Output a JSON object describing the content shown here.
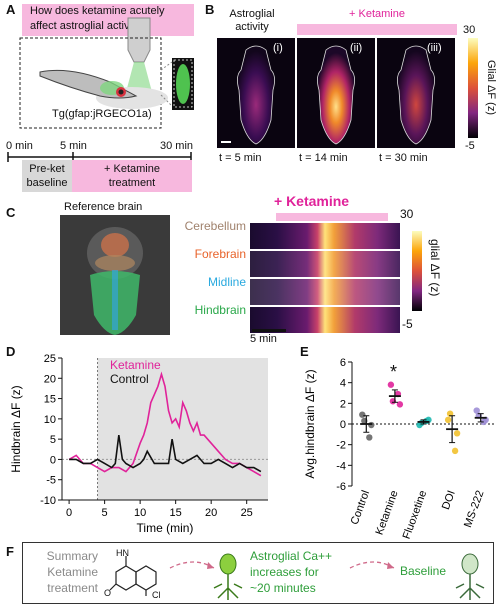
{
  "colors": {
    "ketamine": "#e0239a",
    "ketamine_bar": "#f7b8de",
    "baseline_gray": "#d8d8d8",
    "cerebellum": "#a0826d",
    "forebrain": "#e8632a",
    "midline": "#29a9df",
    "hindbrain": "#2aa84a",
    "summary_green": "#2e9e3a"
  },
  "panelA": {
    "letter": "A",
    "question": "How does ketamine acutely affect astroglial activity?",
    "question_line1": "How does ketamine acutely",
    "question_line2": "affect astroglial activity?",
    "transgene": "Tg(gfap:jRGECO1a)",
    "time_labels": [
      "0 min",
      "5 min",
      "30 min"
    ],
    "phase1_line1": "Pre-ket",
    "phase1_line2": "baseline",
    "phase2_line1": "+ Ketamine",
    "phase2_line2": "treatment"
  },
  "panelB": {
    "letter": "B",
    "left_title_line1": "Astroglial",
    "left_title_line2": "activity",
    "ketamine_label": "+ Ketamine",
    "brains": [
      {
        "numeral": "(i)",
        "time": "t = 5 min",
        "level": 0.35
      },
      {
        "numeral": "(ii)",
        "time": "t = 14 min",
        "level": 1.0
      },
      {
        "numeral": "(iii)",
        "time": "t = 30 min",
        "level": 0.4
      }
    ],
    "colorbar_max": "30",
    "colorbar_min": "-5",
    "colorbar_label": "Glial ΔF (z)"
  },
  "panelC": {
    "letter": "C",
    "ref_title": "Reference brain",
    "ketamine_label": "+ Ketamine",
    "regions": [
      "Cerebellum",
      "Forebrain",
      "Midline",
      "Hindbrain"
    ],
    "colorbar_max": "30",
    "colorbar_min": "-5",
    "colorbar_label": "glial ΔF (z)",
    "scale_label": "5 min"
  },
  "panelD": {
    "letter": "D",
    "legend_ketamine": "Ketamine",
    "legend_control": "Control"
  },
  "panelE": {
    "letter": "E",
    "star": "*"
  },
  "panelF": {
    "letter": "F",
    "summary_line1": "Summary",
    "summary_line2": "Ketamine",
    "summary_line3": "treatment",
    "effect_line1": "Astroglial Ca++",
    "effect_line2": "increases for",
    "effect_line3": "~20 minutes",
    "end_label": "Baseline",
    "molecule_labels": [
      "HN",
      "O",
      "Cl"
    ]
  },
  "chart_data": [
    {
      "type": "line",
      "panel": "D",
      "xlabel": "Time (min)",
      "ylabel": "Hindbrain ΔF (z)",
      "xlim": [
        -1,
        28
      ],
      "ylim": [
        -10,
        25
      ],
      "xticks": [
        0,
        5,
        10,
        15,
        20,
        25
      ],
      "yticks": [
        -10,
        -5,
        0,
        5,
        10,
        15,
        20,
        25
      ],
      "shaded_from": 4,
      "series": [
        {
          "name": "Ketamine",
          "color": "#e0239a",
          "x": [
            0,
            1,
            2,
            3,
            4,
            5,
            6,
            7,
            8,
            9,
            10,
            10.5,
            11,
            11.5,
            12,
            12.5,
            13,
            13.5,
            14,
            14.5,
            15,
            15.5,
            16,
            16.5,
            17,
            17.5,
            18,
            18.5,
            19,
            20,
            21,
            22,
            23,
            24,
            25,
            26,
            27
          ],
          "y": [
            0,
            1,
            -1,
            -1,
            -2,
            -3,
            -2,
            -2,
            -3,
            -1,
            4,
            6,
            9,
            14,
            16,
            18,
            21,
            18,
            12,
            9,
            10,
            8,
            14,
            12,
            9,
            7,
            9,
            6,
            6,
            4,
            2,
            0,
            -1,
            -1,
            -2,
            -3,
            -4
          ]
        },
        {
          "name": "Control",
          "color": "#111111",
          "x": [
            0,
            1,
            2,
            3,
            4,
            5,
            6,
            6.5,
            7,
            7.5,
            8,
            9,
            10,
            10.5,
            11,
            12,
            13,
            14,
            14.5,
            15,
            16,
            17,
            18,
            19,
            20,
            21,
            22,
            23,
            24,
            25,
            26,
            27
          ],
          "y": [
            0,
            0,
            -1,
            -1,
            0,
            -1,
            -2,
            -1,
            6,
            0,
            -1,
            -2,
            -1,
            0,
            2,
            -1,
            -1,
            -1,
            5,
            0,
            -1,
            0,
            1,
            -1,
            -1,
            0,
            -1,
            -2,
            -1,
            -2,
            -2,
            -3
          ]
        }
      ]
    },
    {
      "type": "scatter",
      "panel": "E",
      "ylabel": "Avg.hindbrain ΔF (z)",
      "ylim": [
        -6,
        6
      ],
      "yticks": [
        -6,
        -4,
        -2,
        0,
        2,
        4,
        6
      ],
      "categories": [
        "Control",
        "Ketamine",
        "Fluoxetine",
        "DOI",
        "MS-222"
      ],
      "colors": [
        "#666666",
        "#e0239a",
        "#1fb8b0",
        "#f2c12e",
        "#9e8fd6"
      ],
      "means": [
        0,
        2.7,
        0.2,
        -0.5,
        0.6
      ],
      "sem": [
        0.8,
        0.6,
        0.2,
        1.3,
        0.4
      ],
      "points": [
        [
          0.3,
          -1.3,
          0.9,
          -0.1
        ],
        [
          2.2,
          2.9,
          3.8,
          1.9
        ],
        [
          0.1,
          0.3,
          -0.1,
          0.4
        ],
        [
          1.0,
          -2.6,
          0.4,
          -0.9
        ],
        [
          0.8,
          0.2,
          1.3,
          0.4
        ]
      ],
      "significant": [
        "Ketamine"
      ]
    }
  ]
}
